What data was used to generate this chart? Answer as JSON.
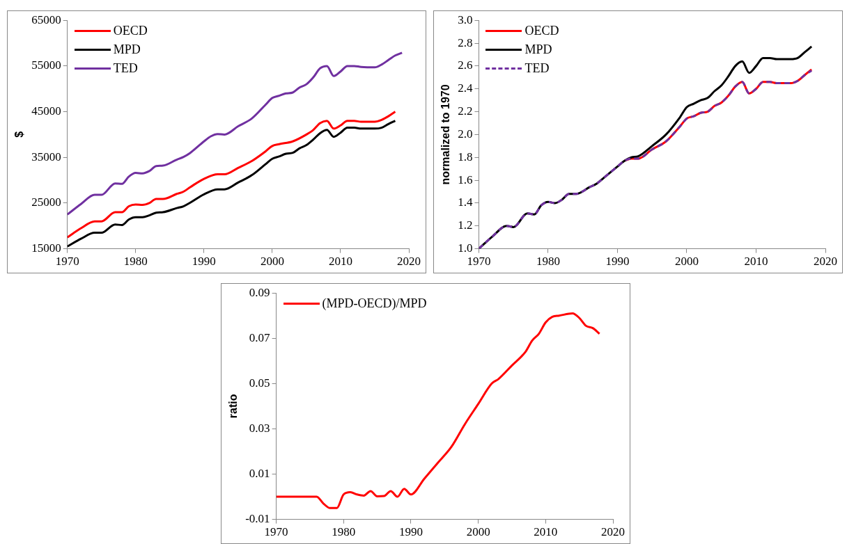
{
  "chart_data": [
    {
      "type": "line",
      "ylabel": "$",
      "xlim": [
        1970,
        2020
      ],
      "xticks": [
        1970,
        1980,
        1990,
        2000,
        2010,
        2020
      ],
      "ylim": [
        15000,
        65000
      ],
      "yticks": [
        15000,
        25000,
        35000,
        45000,
        55000,
        65000
      ],
      "grid": false,
      "legend": "top left",
      "series": [
        {
          "name": "OECD",
          "color": "#ff0000",
          "x": [
            1970,
            1972,
            1974,
            1975,
            1977,
            1978,
            1979,
            1980,
            1981,
            1982,
            1983,
            1984,
            1986,
            1987,
            1988,
            1990,
            1992,
            1993,
            1995,
            1997,
            1999,
            2000,
            2001,
            2003,
            2005,
            2006,
            2007,
            2008,
            2009,
            2010,
            2011,
            2012,
            2013,
            2015,
            2016,
            2017,
            2018
          ],
          "values": [
            17500,
            19500,
            21000,
            21000,
            23000,
            23000,
            24300,
            24700,
            24600,
            25000,
            25900,
            25900,
            27000,
            27500,
            28500,
            30300,
            31300,
            31300,
            32700,
            34200,
            36300,
            37500,
            37900,
            38500,
            40000,
            41000,
            42500,
            43000,
            41300,
            42000,
            43000,
            43000,
            42800,
            42800,
            43200,
            44000,
            45000
          ]
        },
        {
          "name": "MPD",
          "color": "#000000",
          "x": [
            1970,
            1972,
            1974,
            1975,
            1977,
            1978,
            1979,
            1980,
            1981,
            1982,
            1983,
            1984,
            1986,
            1987,
            1988,
            1990,
            1992,
            1993,
            1995,
            1997,
            1999,
            2000,
            2001,
            2002,
            2003,
            2004,
            2005,
            2006,
            2007,
            2008,
            2009,
            2010,
            2011,
            2012,
            2013,
            2015,
            2016,
            2017,
            2018
          ],
          "values": [
            15500,
            17200,
            18500,
            18500,
            20300,
            20200,
            21400,
            21900,
            21900,
            22300,
            22900,
            23000,
            23900,
            24300,
            25100,
            26900,
            28000,
            28000,
            29500,
            31100,
            33500,
            34700,
            35200,
            35800,
            36000,
            37000,
            37700,
            38900,
            40300,
            41000,
            39500,
            40400,
            41500,
            41500,
            41300,
            41300,
            41500,
            42300,
            43000
          ]
        },
        {
          "name": "TED",
          "color": "#7030a0",
          "x": [
            1970,
            1972,
            1974,
            1975,
            1977,
            1978,
            1979,
            1980,
            1981,
            1982,
            1983,
            1984,
            1986,
            1987,
            1988,
            1990,
            1991,
            1992,
            1993,
            1995,
            1997,
            1999,
            2000,
            2001,
            2002,
            2003,
            2004,
            2005,
            2006,
            2007,
            2008,
            2009,
            2010,
            2011,
            2012,
            2013,
            2015,
            2016,
            2017,
            2018,
            2019
          ],
          "values": [
            22500,
            24800,
            26800,
            26800,
            29300,
            29200,
            30800,
            31600,
            31500,
            32000,
            33100,
            33200,
            34500,
            35100,
            36000,
            38500,
            39600,
            40100,
            40000,
            41800,
            43500,
            46500,
            48000,
            48500,
            49000,
            49200,
            50300,
            51000,
            52500,
            54500,
            55000,
            52800,
            53800,
            55000,
            55000,
            54800,
            54700,
            55300,
            56300,
            57300,
            57900
          ]
        }
      ]
    },
    {
      "type": "line",
      "ylabel": "normalized to 1970",
      "xlim": [
        1970,
        2020
      ],
      "xticks": [
        1970,
        1980,
        1990,
        2000,
        2010,
        2020
      ],
      "ylim": [
        1.0,
        3.0
      ],
      "yticks": [
        {
          "value": 1.0,
          "label": "1.0"
        },
        1.2,
        1.4,
        1.6,
        1.8,
        {
          "value": 2.0,
          "label": "2.0"
        },
        2.2,
        2.4,
        2.6,
        2.8,
        {
          "value": 3.0,
          "label": "3.0"
        }
      ],
      "grid": false,
      "legend": "top left",
      "series": [
        {
          "name": "OECD",
          "color": "#ff0000",
          "x": [
            1991,
            1992,
            1993,
            1995,
            1997,
            1999,
            2000,
            2001,
            2002,
            2003,
            2004,
            2005,
            2006,
            2007,
            2008,
            2009,
            2010,
            2011,
            2012,
            2013,
            2015,
            2016,
            2017,
            2018
          ],
          "values": [
            1.77,
            1.79,
            1.79,
            1.87,
            1.94,
            2.07,
            2.14,
            2.16,
            2.19,
            2.2,
            2.25,
            2.28,
            2.34,
            2.42,
            2.46,
            2.36,
            2.4,
            2.46,
            2.46,
            2.45,
            2.45,
            2.47,
            2.52,
            2.57
          ]
        },
        {
          "name": "MPD",
          "color": "#000000",
          "x": [
            1970,
            1972,
            1974,
            1975,
            1977,
            1978,
            1979,
            1980,
            1981,
            1982,
            1983,
            1984,
            1986,
            1987,
            1988,
            1990,
            1991,
            1992,
            1993,
            1995,
            1997,
            1999,
            2000,
            2001,
            2002,
            2003,
            2004,
            2005,
            2006,
            2007,
            2008,
            2009,
            2010,
            2011,
            2012,
            2013,
            2015,
            2016,
            2017,
            2018
          ],
          "values": [
            1.0,
            1.11,
            1.2,
            1.19,
            1.31,
            1.3,
            1.38,
            1.41,
            1.4,
            1.43,
            1.48,
            1.48,
            1.54,
            1.57,
            1.62,
            1.72,
            1.77,
            1.8,
            1.81,
            1.9,
            2.0,
            2.15,
            2.24,
            2.27,
            2.3,
            2.32,
            2.38,
            2.43,
            2.51,
            2.6,
            2.64,
            2.54,
            2.6,
            2.67,
            2.67,
            2.66,
            2.66,
            2.67,
            2.72,
            2.77
          ]
        },
        {
          "name": "TED",
          "color": "#7030a0",
          "line_style": "dashed",
          "x": [
            1970,
            1972,
            1974,
            1975,
            1977,
            1978,
            1979,
            1980,
            1981,
            1982,
            1983,
            1984,
            1986,
            1987,
            1988,
            1990,
            1991,
            1992,
            1993,
            1995,
            1997,
            1999,
            2000,
            2001,
            2002,
            2003,
            2004,
            2005,
            2006,
            2007,
            2008,
            2009,
            2010,
            2011,
            2012,
            2013,
            2015,
            2016,
            2017,
            2018
          ],
          "values": [
            1.0,
            1.11,
            1.2,
            1.19,
            1.31,
            1.3,
            1.38,
            1.41,
            1.4,
            1.43,
            1.48,
            1.48,
            1.54,
            1.57,
            1.62,
            1.72,
            1.77,
            1.79,
            1.79,
            1.87,
            1.94,
            2.07,
            2.14,
            2.16,
            2.19,
            2.2,
            2.25,
            2.28,
            2.34,
            2.42,
            2.46,
            2.36,
            2.4,
            2.46,
            2.46,
            2.45,
            2.45,
            2.47,
            2.52,
            2.56
          ]
        }
      ]
    },
    {
      "type": "line",
      "ylabel": "ratio",
      "xlim": [
        1970,
        2020
      ],
      "xticks": [
        1970,
        1980,
        1990,
        2000,
        2010,
        2020
      ],
      "ylim": [
        -0.01,
        0.09
      ],
      "yticks": [
        -0.01,
        0.01,
        0.03,
        0.05,
        0.07,
        0.09
      ],
      "grid": false,
      "legend": "top left",
      "series": [
        {
          "name": "(MPD-OECD)/MPD",
          "color": "#ff0000",
          "x": [
            1970,
            1975,
            1976,
            1977,
            1978,
            1979,
            1980,
            1981,
            1982,
            1983,
            1984,
            1985,
            1986,
            1987,
            1988,
            1989,
            1990,
            1992,
            1994,
            1996,
            1998,
            2000,
            2002,
            2003,
            2005,
            2007,
            2008,
            2009,
            2010,
            2011,
            2012,
            2014,
            2015,
            2016,
            2017,
            2018
          ],
          "values": [
            0.0,
            0.0,
            0.0,
            -0.003,
            -0.005,
            -0.005,
            0.001,
            0.002,
            0.001,
            0.0005,
            0.0025,
            0.0002,
            0.0003,
            0.0025,
            0.0,
            0.0035,
            0.001,
            0.008,
            0.015,
            0.022,
            0.032,
            0.041,
            0.05,
            0.052,
            0.058,
            0.064,
            0.069,
            0.072,
            0.077,
            0.0795,
            0.08,
            0.081,
            0.079,
            0.0755,
            0.0745,
            0.072
          ]
        }
      ]
    }
  ]
}
